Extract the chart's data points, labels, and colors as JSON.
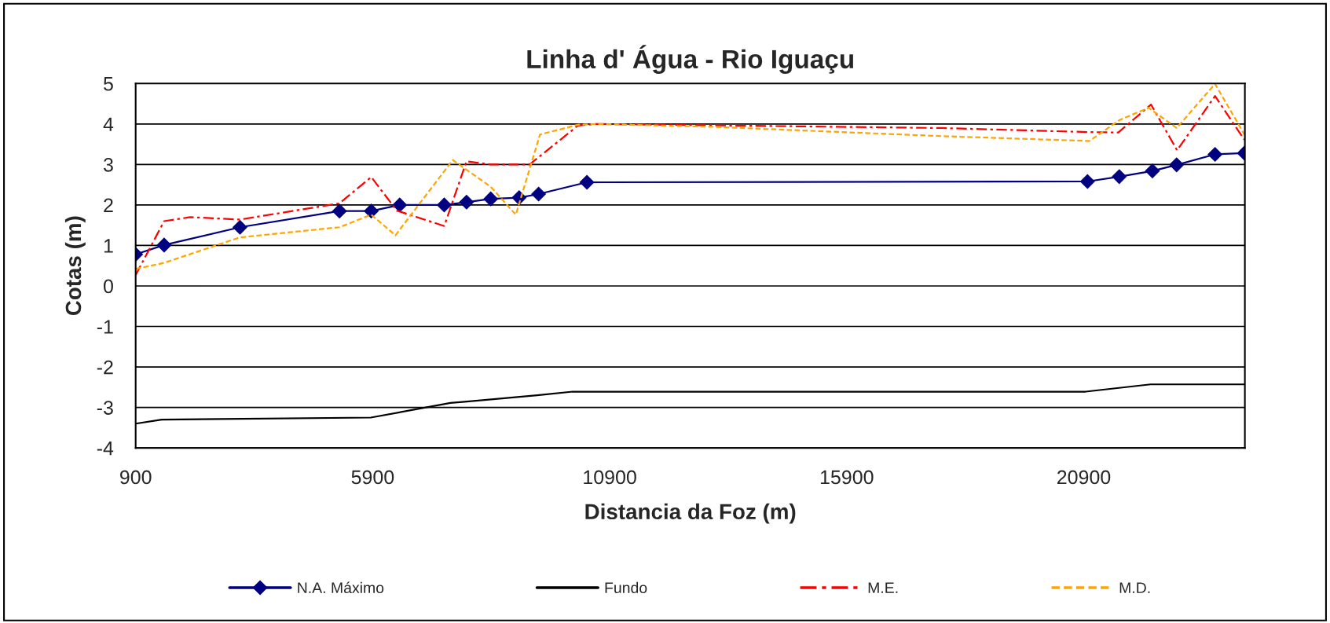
{
  "chart_data": {
    "type": "line",
    "title": "Linha d' Água - Rio Iguaçu",
    "xlabel": "Distancia da Foz (m)",
    "ylabel": "Cotas (m)",
    "xlim": [
      900,
      24300
    ],
    "xticks": [
      900,
      5900,
      10900,
      15900,
      20900
    ],
    "ylim": [
      -4,
      5
    ],
    "yticks": [
      -4,
      -3,
      -2,
      -1,
      0,
      1,
      2,
      3,
      4,
      5
    ],
    "grid": "y",
    "legend": "bottom",
    "series": [
      {
        "name": "N.A. Máximo",
        "color": "#000080",
        "marker": "diamond",
        "line_style": "solid",
        "x": [
          900,
          1500,
          3100,
          5200,
          5870,
          6470,
          7410,
          7880,
          8390,
          8990,
          9400,
          10420,
          20980,
          21650,
          22350,
          22860,
          23670,
          24290
        ],
        "values": [
          0.78,
          1.01,
          1.45,
          1.85,
          1.85,
          2.0,
          2.0,
          2.07,
          2.15,
          2.18,
          2.27,
          2.56,
          2.58,
          2.7,
          2.84,
          2.99,
          3.25,
          3.28
        ]
      },
      {
        "name": "Fundo",
        "color": "#000000",
        "marker": "none",
        "line_style": "solid",
        "x": [
          900,
          1450,
          5860,
          7540,
          7840,
          9370,
          10120,
          20940,
          22310,
          24290
        ],
        "values": [
          -3.4,
          -3.3,
          -3.25,
          -2.89,
          -2.86,
          -2.7,
          -2.61,
          -2.61,
          -2.43,
          -2.43
        ]
      },
      {
        "name": "M.E.",
        "color": "#ff0000",
        "marker": "none",
        "line_style": "dashdot",
        "x": [
          900,
          1500,
          2050,
          3100,
          5200,
          5870,
          6410,
          7410,
          7880,
          8390,
          9210,
          10230,
          10610,
          17900,
          21000,
          21630,
          22320,
          22870,
          23670,
          24290
        ],
        "values": [
          0.27,
          1.6,
          1.7,
          1.64,
          2.04,
          2.69,
          1.86,
          1.48,
          3.08,
          3.0,
          3.0,
          3.96,
          4.0,
          3.9,
          3.8,
          3.79,
          4.48,
          3.35,
          4.69,
          3.61
        ]
      },
      {
        "name": "M.D.",
        "color": "#ffa500",
        "marker": "none",
        "line_style": "dashed",
        "x": [
          900,
          1500,
          3100,
          5200,
          5870,
          6380,
          7590,
          8390,
          8920,
          9430,
          10230,
          10610,
          13060,
          17900,
          21020,
          21660,
          22270,
          22860,
          23670,
          24290
        ],
        "values": [
          0.42,
          0.57,
          1.2,
          1.45,
          1.76,
          1.25,
          3.11,
          2.45,
          1.76,
          3.74,
          3.98,
          4.0,
          3.93,
          3.7,
          3.58,
          4.1,
          4.4,
          3.9,
          4.99,
          3.74
        ]
      }
    ]
  }
}
